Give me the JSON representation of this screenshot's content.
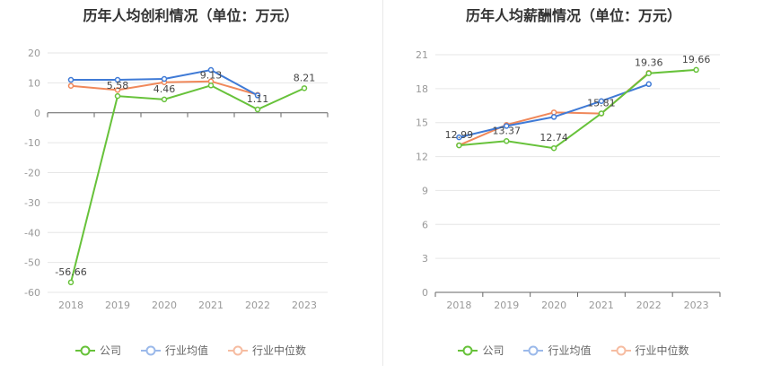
{
  "colors": {
    "company": "#67c23a",
    "industry_avg": "#3f7ad6",
    "industry_median": "#f0885a"
  },
  "chart_data": [
    {
      "type": "line",
      "title": "历年人均创利情况（单位：万元）",
      "x": [
        "2018",
        "2019",
        "2020",
        "2021",
        "2022",
        "2023"
      ],
      "ylim": [
        -60,
        20
      ],
      "yticks": [
        20,
        10,
        0,
        -10,
        -20,
        -30,
        -40,
        -50,
        -60
      ],
      "grid": true,
      "legend_position": "bottom",
      "series": [
        {
          "name": "公司",
          "key": "company",
          "values": [
            -56.66,
            5.58,
            4.46,
            9.13,
            1.11,
            8.21
          ],
          "labels": [
            "-56.66",
            "5.58",
            "4.46",
            "9.13",
            "1.11",
            "8.21"
          ]
        },
        {
          "name": "行业均值",
          "key": "industry_avg",
          "values": [
            11.0,
            11.0,
            11.3,
            14.3,
            5.8,
            null
          ]
        },
        {
          "name": "行业中位数",
          "key": "industry_median",
          "values": [
            9.0,
            7.6,
            10.2,
            10.5,
            6.0,
            null
          ]
        }
      ]
    },
    {
      "type": "line",
      "title": "历年人均薪酬情况（单位：万元）",
      "x": [
        "2018",
        "2019",
        "2020",
        "2021",
        "2022",
        "2023"
      ],
      "ylim": [
        0,
        21
      ],
      "yticks": [
        21,
        18,
        15,
        12,
        9,
        6,
        3,
        0
      ],
      "grid": true,
      "legend_position": "bottom",
      "series": [
        {
          "name": "公司",
          "key": "company",
          "values": [
            12.99,
            13.37,
            12.74,
            15.81,
            19.36,
            19.66
          ],
          "labels": [
            "12.99",
            "13.37",
            "12.74",
            "15.81",
            "19.36",
            "19.66"
          ]
        },
        {
          "name": "行业均值",
          "key": "industry_avg",
          "values": [
            13.7,
            14.7,
            15.5,
            16.9,
            18.4,
            null
          ]
        },
        {
          "name": "行业中位数",
          "key": "industry_median",
          "values": [
            13.0,
            14.8,
            15.9,
            15.8,
            19.4,
            null
          ]
        }
      ]
    }
  ]
}
